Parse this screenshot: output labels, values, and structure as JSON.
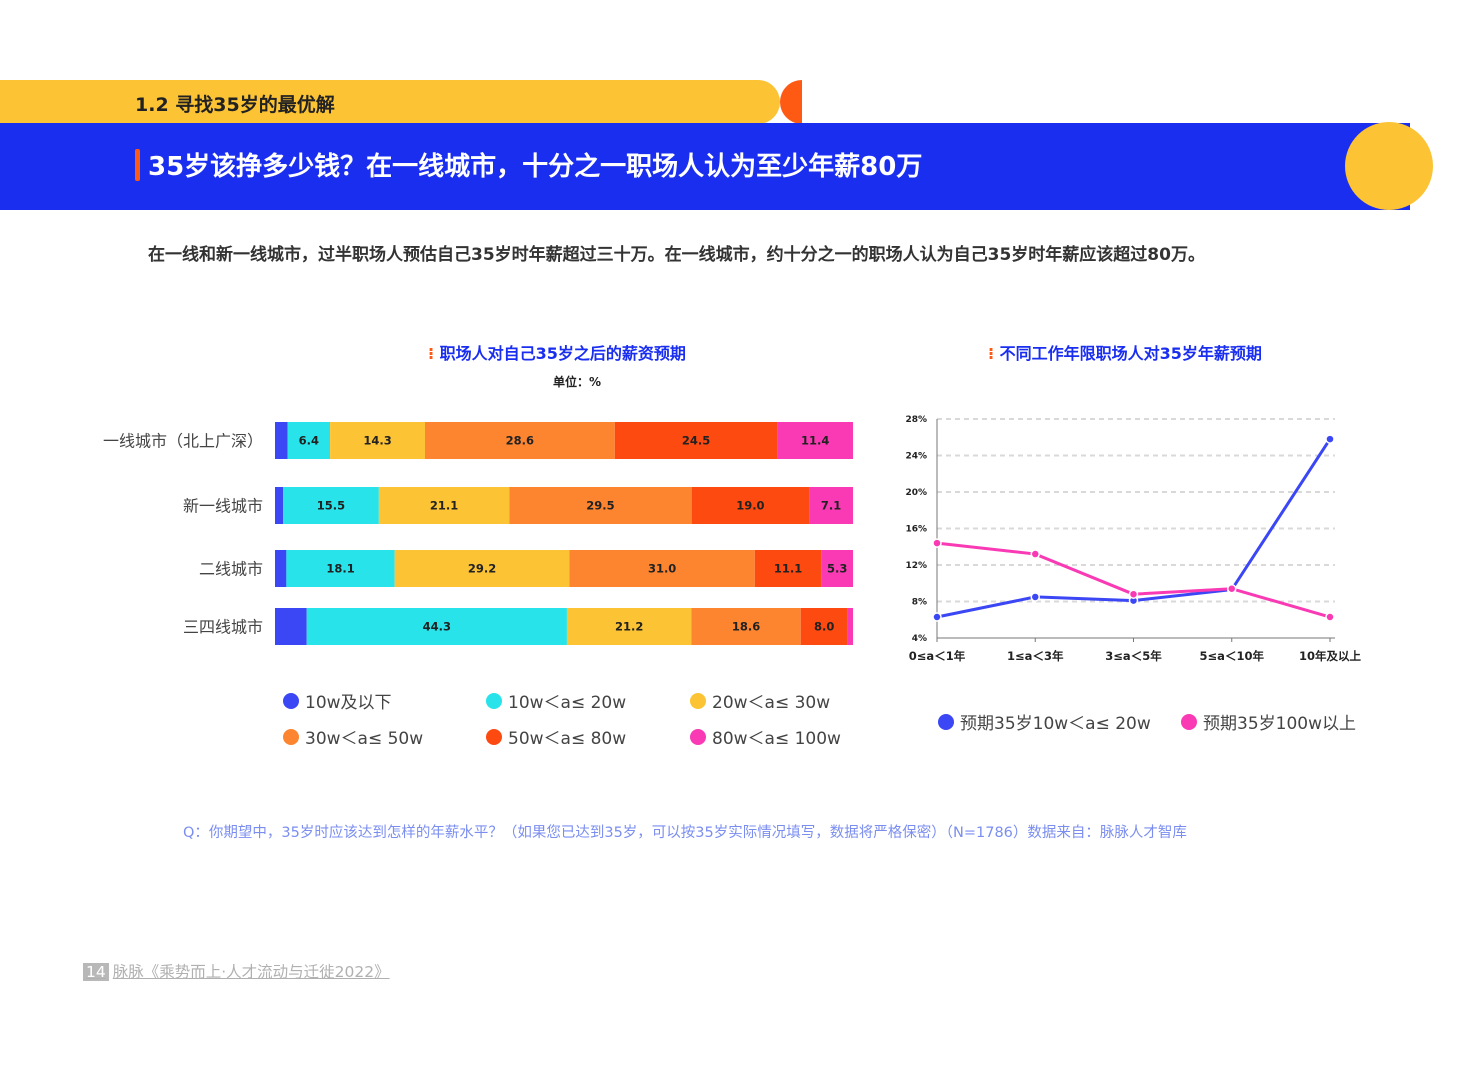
{
  "section": {
    "title": "1.2 寻找35岁的最优解"
  },
  "header": {
    "title": "35岁该挣多少钱？在一线城市，十分之一职场人认为至少年薪80万"
  },
  "subtitle": "在一线和新一线城市，过半职场人预估自己35岁时年薪超过三十万。在一线城市，约十分之一的职场人认为自己35岁时年薪应该超过80万。",
  "question": "Q：你期望中，35岁时应该达到怎样的年薪水平？（如果您已达到35岁，可以按35岁实际情况填写，数据将严格保密）（N=1786）数据来自：脉脉人才智库",
  "footer": {
    "page": "14",
    "text": "脉脉《乘势而上·人才流动与迁徙2022》"
  },
  "colors": {
    "blue": "#3b46f5",
    "cyan": "#28e4ea",
    "yellow": "#fcc434",
    "orange": "#fd8530",
    "red": "#fd4a10",
    "pink": "#f93ab4"
  },
  "chart_data": [
    {
      "type": "bar",
      "orientation": "horizontal-stacked",
      "title": "职场人对自己35岁之后的薪资预期",
      "unit": "单位：%",
      "categories": [
        "一线城市（北上广深）",
        "新一线城市",
        "二线城市",
        "三四线城市"
      ],
      "series": [
        {
          "name": "10w及以下",
          "color": "#3b46f5",
          "values": [
            1.9,
            1.3,
            1.9,
            5.4
          ],
          "labels": [
            "",
            "",
            "",
            ""
          ]
        },
        {
          "name": "10w＜a≤ 20w",
          "color": "#28e4ea",
          "values": [
            6.4,
            15.5,
            18.1,
            44.3
          ],
          "labels": [
            "6.4",
            "15.5",
            "18.1",
            "44.3"
          ]
        },
        {
          "name": "20w＜a≤ 30w",
          "color": "#fcc434",
          "values": [
            14.3,
            21.1,
            29.2,
            21.2
          ],
          "labels": [
            "14.3",
            "21.1",
            "29.2",
            "21.2"
          ]
        },
        {
          "name": "30w＜a≤ 50w",
          "color": "#fd8530",
          "values": [
            28.6,
            29.5,
            31.0,
            18.6
          ],
          "labels": [
            "28.6",
            "29.5",
            "31.0",
            "18.6"
          ]
        },
        {
          "name": "50w＜a≤ 80w",
          "color": "#fd4a10",
          "values": [
            24.5,
            19.0,
            11.1,
            8.0
          ],
          "labels": [
            "24.5",
            "19.0",
            "11.1",
            "8.0"
          ]
        },
        {
          "name": "80w＜a≤ 100w",
          "color": "#f93ab4",
          "values": [
            11.4,
            7.1,
            5.3,
            0.9
          ],
          "labels": [
            "11.4",
            "7.1",
            "5.3",
            ""
          ]
        }
      ]
    },
    {
      "type": "line",
      "title": "不同工作年限职场人对35岁年薪预期",
      "categories": [
        "0≤a＜1年",
        "1≤a＜3年",
        "3≤a＜5年",
        "5≤a＜10年",
        "10年及以上"
      ],
      "yticks": [
        "4%",
        "8%",
        "12%",
        "16%",
        "20%",
        "24%",
        "28%"
      ],
      "ylim": [
        4,
        28
      ],
      "grid": true,
      "series": [
        {
          "name": "预期35岁10w＜a≤ 20w",
          "color": "#3b46f5",
          "values": [
            6.3,
            8.5,
            8.1,
            9.3,
            25.8
          ]
        },
        {
          "name": "预期35岁100w以上",
          "color": "#f93ab4",
          "values": [
            14.4,
            13.2,
            8.8,
            9.4,
            6.3
          ]
        }
      ]
    }
  ]
}
